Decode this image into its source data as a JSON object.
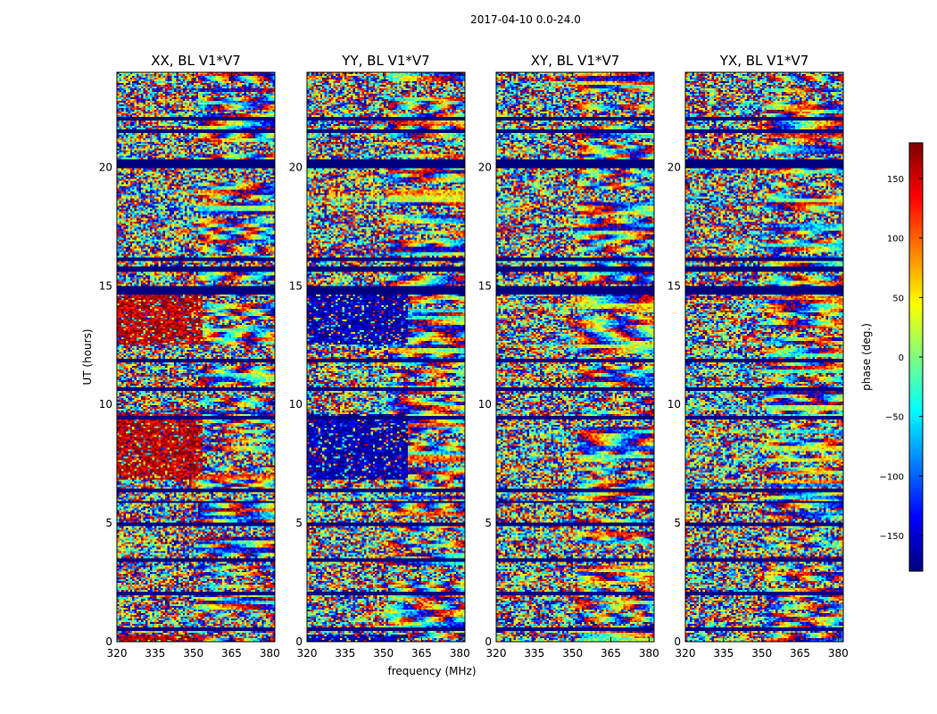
{
  "figure": {
    "suptitle": "2017-04-10 0.0-24.0"
  },
  "chart_data": {
    "type": "heatmap",
    "title": "2017-04-10 0.0-24.0",
    "xlabel": "frequency (MHz)",
    "ylabel": "UT (hours)",
    "xlim": [
      320,
      382
    ],
    "ylim": [
      0,
      24
    ],
    "xticks": [
      320,
      335,
      350,
      365,
      380
    ],
    "yticks": [
      0,
      5,
      10,
      15,
      20
    ],
    "panels": [
      {
        "title": "XX, BL V1*V7",
        "pol": "XX",
        "bias_phase": 160,
        "bias_ranges": [
          [
            0,
            0.3
          ],
          [
            6.8,
            9.6
          ],
          [
            12.5,
            14.8
          ]
        ],
        "bias_fmax": 354
      },
      {
        "title": "YY, BL V1*V7",
        "pol": "YY",
        "bias_phase": -165,
        "bias_ranges": [
          [
            0,
            0.3
          ],
          [
            6.8,
            9.6
          ],
          [
            12.5,
            14.8
          ]
        ],
        "bias_fmax": 360
      },
      {
        "title": "XY, BL V1*V7",
        "pol": "XY",
        "bias_phase": null,
        "bias_ranges": [],
        "bias_fmax": 0
      },
      {
        "title": "YX, BL V1*V7",
        "pol": "YX",
        "bias_phase": null,
        "bias_ranges": [],
        "bias_fmax": 0
      }
    ],
    "flagged_time_ranges_hours": [
      [
        0.45,
        0.6
      ],
      [
        1.95,
        2.1
      ],
      [
        3.4,
        3.55
      ],
      [
        4.85,
        5.05
      ],
      [
        5.85,
        5.95
      ],
      [
        6.3,
        6.45
      ],
      [
        9.35,
        9.5
      ],
      [
        10.55,
        10.7
      ],
      [
        11.75,
        11.9
      ],
      [
        14.6,
        15.0
      ],
      [
        15.6,
        15.85
      ],
      [
        16.05,
        16.2
      ],
      [
        19.95,
        20.3
      ],
      [
        21.45,
        21.6
      ],
      [
        22.0,
        22.15
      ]
    ],
    "colorbar": {
      "label": "phase (deg.)",
      "min": -180,
      "max": 180,
      "ticks": [
        -150,
        -100,
        -50,
        0,
        50,
        100,
        150
      ],
      "colormap": "jet",
      "colormap_stops": [
        "#00007f",
        "#0000ff",
        "#007fff",
        "#00ffff",
        "#7fff7f",
        "#ffff00",
        "#ff7f00",
        "#ff0000",
        "#7f0000"
      ]
    }
  }
}
